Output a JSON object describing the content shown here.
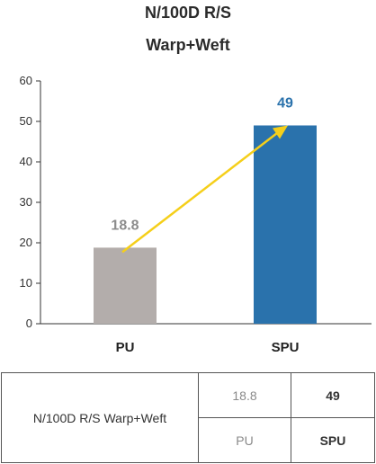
{
  "chart_data": {
    "type": "bar",
    "title_line1": "N/100D R/S",
    "title_line2": "Warp+Weft",
    "categories": [
      "PU",
      "SPU"
    ],
    "values": [
      18.8,
      49
    ],
    "value_labels": [
      "18.8",
      "49"
    ],
    "ylim": [
      0,
      60
    ],
    "yticks": [
      0,
      10,
      20,
      30,
      40,
      50,
      60
    ],
    "grid": false,
    "arrow": {
      "from_category": "PU",
      "to_category": "SPU",
      "color": "#f5cf1a"
    },
    "colors": {
      "PU": "#b3adab",
      "SPU": "#2a72ac"
    },
    "label_colors": {
      "PU": "#8c8c8c",
      "SPU": "#2a72ac"
    }
  },
  "table": {
    "row_label": "N/100D R/S Warp+Weft",
    "pu_value": "18.8",
    "spu_value": "49",
    "pu_label": "PU",
    "spu_label": "SPU"
  }
}
